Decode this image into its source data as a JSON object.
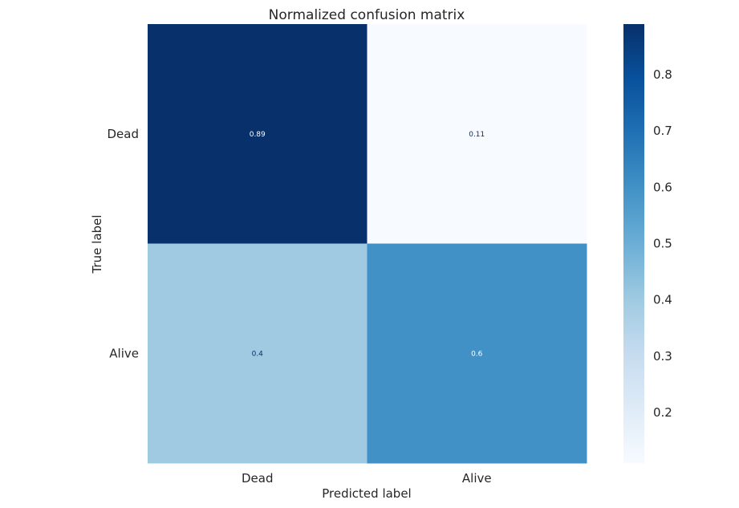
{
  "chart_data": {
    "type": "heatmap",
    "title": "Normalized confusion matrix",
    "xlabel": "Predicted label",
    "ylabel": "True label",
    "x_categories": [
      "Dead",
      "Alive"
    ],
    "y_categories": [
      "Dead",
      "Alive"
    ],
    "values": [
      [
        0.89,
        0.11
      ],
      [
        0.4,
        0.6
      ]
    ],
    "cell_labels": [
      [
        "0.89",
        "0.11"
      ],
      [
        "0.4",
        "0.6"
      ]
    ],
    "colormap": "Blues",
    "colorbar": {
      "min": 0.11,
      "max": 0.89,
      "ticks": [
        0.2,
        0.3,
        0.4,
        0.5,
        0.6,
        0.7,
        0.8
      ],
      "tick_labels": [
        "0.2",
        "0.3",
        "0.4",
        "0.5",
        "0.6",
        "0.7",
        "0.8"
      ]
    },
    "grid": false
  }
}
